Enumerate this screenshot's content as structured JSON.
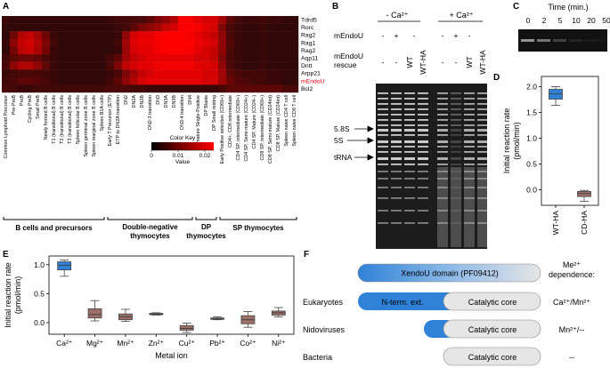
{
  "panels": {
    "a": "A",
    "b": "B",
    "c": "C",
    "d": "D",
    "e": "E",
    "f": "F"
  },
  "heatmap": {
    "genes": [
      "Tdrd5",
      "Rorc",
      "Rag2",
      "Rag1",
      "Rag2",
      "Aqp11",
      "Dntt",
      "Arpp21",
      "mEndoU",
      "Bcl2"
    ],
    "highlight_gene": "mEndoU",
    "highlight_color": "#e8000b",
    "cell_types": [
      "Common Lymphoid Precursor",
      "Pre-ProB",
      "ProB",
      "Cycling PreB",
      "Small PreB",
      "Newly formed B cells",
      "T1 (transitional) B cells",
      "T2 (transitional) B cells",
      "T3 (transitional) B cells",
      "Spleen follicular B cells",
      "Spleen germinal zone B cells",
      "Spleen marginal zone B cells",
      "Spleen B1A cells",
      "Early T Precursor (ETP)",
      "ETP to DN2A transition",
      "DN2",
      "DN2A",
      "DN2B",
      "DN2-3 transition",
      "DN3",
      "DN3A",
      "DN3B",
      "DN3-4 transition",
      "DN4",
      "Immature Single-Positive",
      "DP Blasts",
      "DP Small resting",
      "Early Positive selection (CD69+)",
      "CD4+, CD8 intermediate",
      "CD4 SP, intermediate (CD69+)",
      "CD4 SP, Semi-mature (CD24+)",
      "CD4 SP, Mature (CD24−)",
      "CD8 SP, intermediate (CD69+)",
      "CD8 SP, Semi-mature (CD24int)",
      "CD8 SP, Mature (CD24int)",
      "Spleen naive CD4 T cell",
      "Spleen naive CD8 T cell"
    ],
    "groups": [
      {
        "label": "B cells and precursors",
        "from": 0,
        "to": 12
      },
      {
        "label": "Double-negative thymocytes",
        "from": 13,
        "to": 23
      },
      {
        "label": "DP thymocytes",
        "from": 24,
        "to": 26
      },
      {
        "label": "SP thymocytes",
        "from": 27,
        "to": 36
      }
    ],
    "color_key": {
      "title": "Color Key",
      "ticks": [
        "0",
        "0.01",
        "0.02"
      ],
      "xlabel": "Value",
      "colors": [
        "#000000",
        "#ff0000"
      ]
    },
    "values": [
      [
        0.002,
        0.001,
        0.001,
        0.001,
        0.001,
        0.001,
        0.001,
        0.001,
        0.001,
        0.001,
        0.001,
        0.001,
        0.001,
        0.002,
        0.003,
        0.003,
        0.004,
        0.004,
        0.006,
        0.01,
        0.012,
        0.016,
        0.024,
        0.024,
        0.022,
        0.02,
        0.02,
        0.014,
        0.006,
        0.003,
        0.002,
        0.002,
        0.003,
        0.002,
        0.002,
        0.001,
        0.001
      ],
      [
        0.001,
        0.001,
        0.001,
        0.001,
        0.001,
        0.001,
        0.001,
        0.001,
        0.001,
        0.001,
        0.001,
        0.001,
        0.001,
        0.001,
        0.002,
        0.003,
        0.006,
        0.01,
        0.012,
        0.014,
        0.018,
        0.02,
        0.024,
        0.025,
        0.024,
        0.022,
        0.02,
        0.01,
        0.004,
        0.002,
        0.001,
        0.001,
        0.002,
        0.001,
        0.001,
        0.001,
        0.001
      ],
      [
        0.001,
        0.008,
        0.016,
        0.018,
        0.014,
        0.008,
        0.002,
        0.001,
        0.001,
        0.001,
        0.001,
        0.001,
        0.001,
        0.001,
        0.002,
        0.012,
        0.02,
        0.022,
        0.022,
        0.024,
        0.025,
        0.025,
        0.025,
        0.024,
        0.022,
        0.02,
        0.018,
        0.012,
        0.004,
        0.002,
        0.001,
        0.001,
        0.002,
        0.001,
        0.001,
        0.001,
        0.001
      ],
      [
        0.002,
        0.012,
        0.018,
        0.02,
        0.016,
        0.01,
        0.003,
        0.001,
        0.001,
        0.001,
        0.001,
        0.001,
        0.001,
        0.001,
        0.003,
        0.014,
        0.021,
        0.023,
        0.023,
        0.024,
        0.025,
        0.025,
        0.025,
        0.025,
        0.023,
        0.022,
        0.02,
        0.012,
        0.005,
        0.002,
        0.001,
        0.001,
        0.002,
        0.001,
        0.001,
        0.001,
        0.001
      ],
      [
        0.001,
        0.009,
        0.017,
        0.019,
        0.015,
        0.009,
        0.002,
        0.001,
        0.001,
        0.001,
        0.001,
        0.001,
        0.001,
        0.001,
        0.002,
        0.013,
        0.02,
        0.022,
        0.022,
        0.024,
        0.025,
        0.025,
        0.025,
        0.024,
        0.022,
        0.02,
        0.018,
        0.012,
        0.004,
        0.002,
        0.001,
        0.001,
        0.002,
        0.001,
        0.001,
        0.001,
        0.001
      ],
      [
        0.003,
        0.006,
        0.008,
        0.008,
        0.007,
        0.004,
        0.002,
        0.001,
        0.001,
        0.001,
        0.001,
        0.001,
        0.001,
        0.003,
        0.006,
        0.014,
        0.018,
        0.02,
        0.022,
        0.022,
        0.022,
        0.022,
        0.022,
        0.022,
        0.02,
        0.02,
        0.018,
        0.01,
        0.004,
        0.002,
        0.001,
        0.001,
        0.002,
        0.001,
        0.001,
        0.001,
        0.001
      ],
      [
        0.004,
        0.012,
        0.016,
        0.016,
        0.012,
        0.006,
        0.002,
        0.001,
        0.001,
        0.001,
        0.001,
        0.001,
        0.001,
        0.004,
        0.01,
        0.018,
        0.02,
        0.022,
        0.022,
        0.023,
        0.024,
        0.024,
        0.024,
        0.024,
        0.022,
        0.021,
        0.02,
        0.012,
        0.004,
        0.002,
        0.001,
        0.001,
        0.002,
        0.001,
        0.001,
        0.001,
        0.001
      ],
      [
        0.002,
        0.003,
        0.004,
        0.004,
        0.004,
        0.003,
        0.002,
        0.001,
        0.001,
        0.001,
        0.001,
        0.001,
        0.001,
        0.002,
        0.004,
        0.01,
        0.014,
        0.018,
        0.02,
        0.022,
        0.022,
        0.022,
        0.022,
        0.022,
        0.022,
        0.02,
        0.02,
        0.014,
        0.006,
        0.004,
        0.003,
        0.003,
        0.003,
        0.002,
        0.002,
        0.001,
        0.001
      ],
      [
        0.003,
        0.004,
        0.006,
        0.006,
        0.005,
        0.004,
        0.002,
        0.001,
        0.001,
        0.001,
        0.001,
        0.001,
        0.001,
        0.003,
        0.006,
        0.012,
        0.016,
        0.02,
        0.022,
        0.022,
        0.022,
        0.022,
        0.022,
        0.022,
        0.022,
        0.02,
        0.02,
        0.014,
        0.008,
        0.005,
        0.004,
        0.003,
        0.003,
        0.002,
        0.002,
        0.001,
        0.001
      ],
      [
        0.004,
        0.003,
        0.002,
        0.002,
        0.003,
        0.003,
        0.003,
        0.003,
        0.003,
        0.003,
        0.003,
        0.003,
        0.003,
        0.004,
        0.004,
        0.004,
        0.003,
        0.003,
        0.002,
        0.002,
        0.002,
        0.002,
        0.002,
        0.002,
        0.002,
        0.002,
        0.002,
        0.004,
        0.006,
        0.006,
        0.006,
        0.006,
        0.006,
        0.006,
        0.006,
        0.004,
        0.004
      ]
    ]
  },
  "gel_b": {
    "group_labels": [
      "- Ca²⁺",
      "+ Ca²⁺"
    ],
    "row1_label": "mEndoU",
    "row1_values": [
      "-",
      "+",
      "-",
      "-",
      "+",
      "-"
    ],
    "row2_label_line1": "mEndoU",
    "row2_label_line2": "rescue",
    "row2_values": [
      "-",
      "-",
      "WT",
      "WT-HA",
      "-",
      "-",
      "WT",
      "WT-HA"
    ],
    "band_labels": [
      "5.8S",
      "5S",
      "tRNA"
    ]
  },
  "gel_c": {
    "title": "Time (min.)",
    "timepoints": [
      "0",
      "2",
      "5",
      "10",
      "20",
      "50"
    ]
  },
  "chart_d": {
    "ylabel_line1": "Initial reaction rate",
    "ylabel_line2": "(pmol/min)",
    "yticks": [
      "0.0",
      "0.5",
      "1.0",
      "1.5",
      "2.0"
    ],
    "categories": [
      "WT-HA",
      "CD-HA"
    ]
  },
  "chart_e": {
    "ylabel_line1": "Initial reaction rate",
    "ylabel_line2": "(pmol/min)",
    "xlabel": "Metal ion",
    "yticks": [
      "0.0",
      "0.5",
      "1.0"
    ],
    "categories": [
      "Ca²⁺",
      "Mg²⁺",
      "Mn²⁺",
      "Zn²⁺",
      "Cu²⁺",
      "Pb²⁺",
      "Co²⁺",
      "Ni²⁺"
    ]
  },
  "chart_data": [
    {
      "type": "box",
      "ylabel": "Initial reaction rate (pmol/min)",
      "ylim": [
        -0.3,
        2.2
      ],
      "categories": [
        "WT-HA",
        "CD-HA"
      ],
      "colors": [
        "#2f82d8",
        "#9c7068"
      ],
      "boxes": [
        {
          "min": 1.64,
          "q1": 1.76,
          "median": 1.86,
          "q3": 1.95,
          "max": 2.0
        },
        {
          "min": -0.22,
          "q1": -0.13,
          "median": -0.07,
          "q3": -0.03,
          "max": -0.01
        }
      ]
    },
    {
      "type": "box",
      "ylabel": "Initial reaction rate (pmol/min)",
      "xlabel": "Metal ion",
      "ylim": [
        -0.2,
        1.15
      ],
      "categories": [
        "Ca²⁺",
        "Mg²⁺",
        "Mn²⁺",
        "Zn²⁺",
        "Cu²⁺",
        "Pb²⁺",
        "Co²⁺",
        "Ni²⁺"
      ],
      "colors": [
        "#2f82d8",
        "#9c7068",
        "#9c7068",
        "#9c7068",
        "#9c7068",
        "#9c7068",
        "#9c7068",
        "#9c7068"
      ],
      "boxes": [
        {
          "min": 0.8,
          "q1": 0.91,
          "median": 0.99,
          "q3": 1.05,
          "max": 1.08
        },
        {
          "min": 0.03,
          "q1": 0.08,
          "median": 0.14,
          "q3": 0.24,
          "max": 0.38
        },
        {
          "min": 0.02,
          "q1": 0.05,
          "median": 0.1,
          "q3": 0.15,
          "max": 0.23
        },
        {
          "min": 0.13,
          "q1": 0.14,
          "median": 0.15,
          "q3": 0.16,
          "max": 0.17
        },
        {
          "min": -0.17,
          "q1": -0.13,
          "median": -0.1,
          "q3": -0.05,
          "max": -0.01
        },
        {
          "min": 0.05,
          "q1": 0.06,
          "median": 0.07,
          "q3": 0.08,
          "max": 0.1
        },
        {
          "min": -0.08,
          "q1": -0.02,
          "median": 0.05,
          "q3": 0.12,
          "max": 0.19
        },
        {
          "min": 0.1,
          "q1": 0.13,
          "median": 0.17,
          "q3": 0.2,
          "max": 0.26
        }
      ]
    }
  ],
  "panel_f": {
    "header": "Me²⁺",
    "header2": "dependence:",
    "domain_label": "XendoU domain (PF09412)",
    "nterm_label": "N-term. ext.",
    "core_label": "Catalytic core",
    "rows": [
      {
        "name": "Eukaryotes",
        "dependence": "Ca²⁺/Mn²⁺"
      },
      {
        "name": "Nidoviruses",
        "dependence": "Mn²⁺/--"
      },
      {
        "name": "Bacteria",
        "dependence": "--"
      }
    ],
    "blue": "#2f82d8",
    "grey": "#e6e6e6"
  }
}
